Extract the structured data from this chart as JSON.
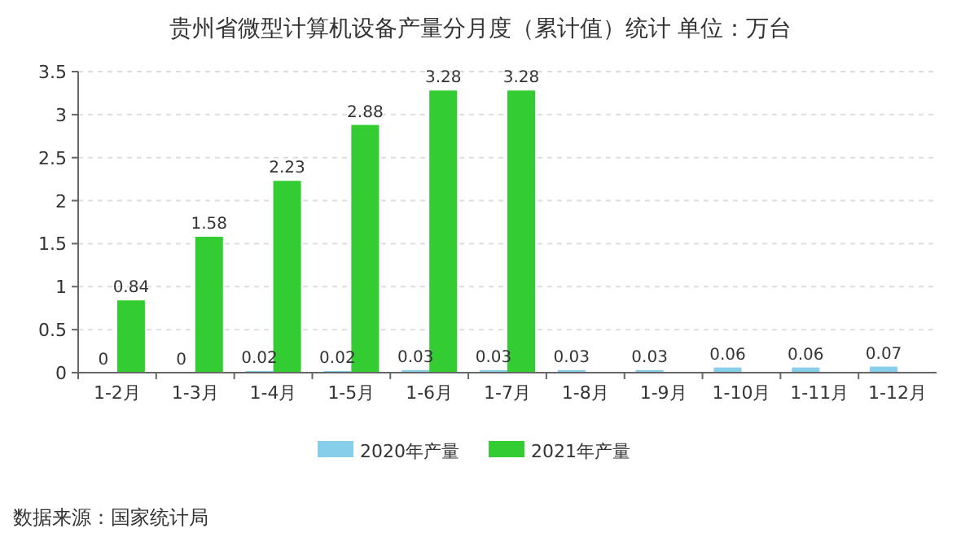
{
  "chart_data": {
    "type": "bar",
    "title": "贵州省微型计算机设备产量分月度（累计值）统计 单位：万台",
    "categories": [
      "1-2月",
      "1-3月",
      "1-4月",
      "1-5月",
      "1-6月",
      "1-7月",
      "1-8月",
      "1-9月",
      "1-10月",
      "1-11月",
      "1-12月"
    ],
    "series": [
      {
        "name": "2020年产量",
        "color": "#87ceeb",
        "values": [
          0,
          0,
          0.02,
          0.02,
          0.03,
          0.03,
          0.03,
          0.03,
          0.06,
          0.06,
          0.07
        ]
      },
      {
        "name": "2021年产量",
        "color": "#33cc33",
        "values": [
          0.84,
          1.58,
          2.23,
          2.88,
          3.28,
          3.28,
          null,
          null,
          null,
          null,
          null
        ]
      }
    ],
    "ylim": [
      0,
      3.5
    ],
    "yticks": [
      0,
      0.5,
      1,
      1.5,
      2,
      2.5,
      3,
      3.5
    ],
    "grid": "y",
    "legend": "bottom",
    "data_labels": true,
    "annotations": [
      "数据来源：国家统计局"
    ]
  }
}
